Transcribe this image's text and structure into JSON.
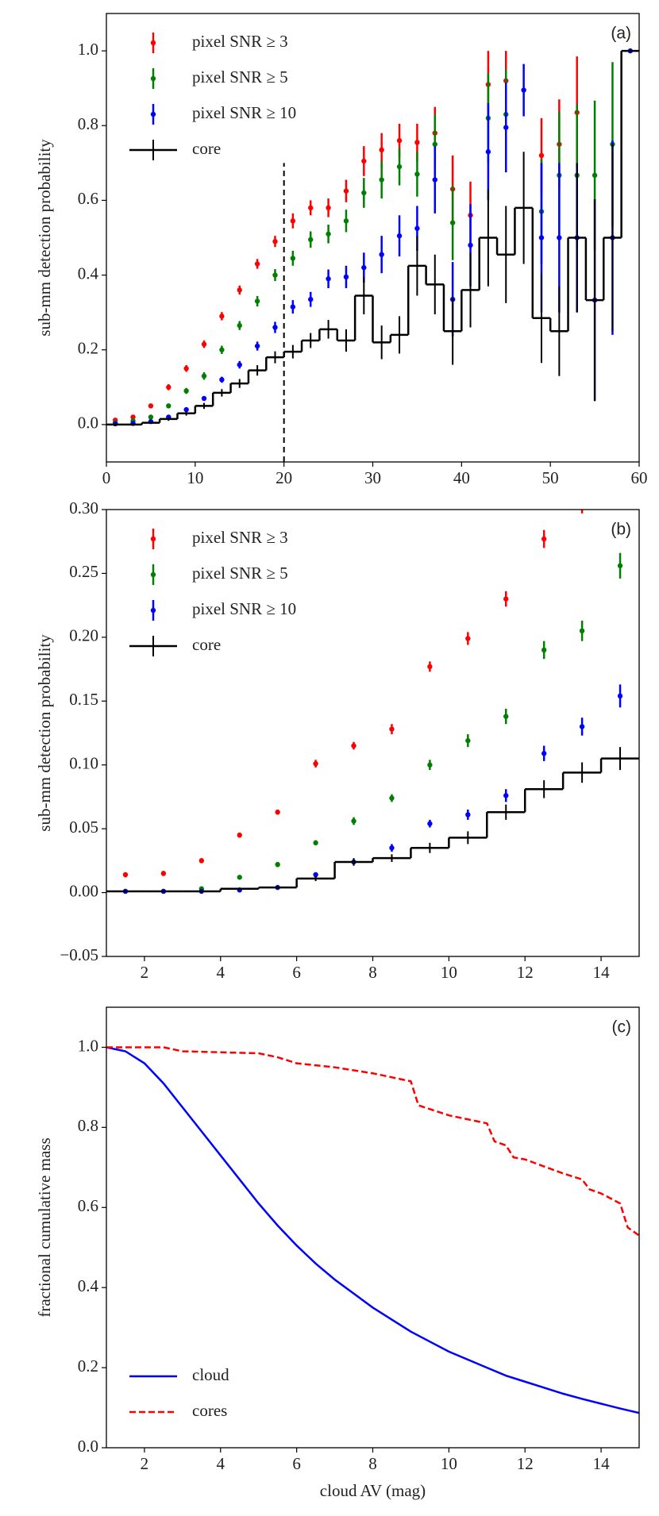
{
  "chart_data": [
    {
      "type": "errorbar",
      "ylabel": "sub-mm detection probability",
      "annotation": "(a)",
      "legend": "upper left",
      "xlim": [
        0,
        60
      ],
      "xticks": [
        0,
        10,
        20,
        30,
        40,
        50,
        60
      ],
      "ylim": [
        -0.1,
        1.1
      ],
      "yticks": [
        {
          "value": 0,
          "label": "0.0"
        },
        0.2,
        0.4,
        0.6,
        0.8,
        {
          "value": 1,
          "label": "1.0"
        }
      ],
      "vline": {
        "x": 20,
        "ymax": 0.7
      },
      "x": [
        1,
        3,
        5,
        7,
        9,
        11,
        13,
        15,
        17,
        19,
        21,
        23,
        25,
        27,
        29,
        31,
        33,
        35,
        37,
        39,
        41,
        43,
        45,
        47,
        49,
        51,
        53,
        55,
        57,
        59
      ],
      "bins": [
        0,
        2,
        4,
        6,
        8,
        10,
        12,
        14,
        16,
        18,
        20,
        22,
        24,
        26,
        28,
        30,
        32,
        34,
        36,
        38,
        40,
        42,
        44,
        46,
        48,
        50,
        52,
        54,
        56,
        58,
        60
      ],
      "series": [
        {
          "name": "pixel SNR ≥ 3",
          "style": "points",
          "color": "#ff0000",
          "values": [
            0.012,
            0.02,
            0.05,
            0.1,
            0.15,
            0.215,
            0.29,
            0.36,
            0.43,
            0.49,
            0.545,
            0.58,
            0.58,
            0.625,
            0.705,
            0.735,
            0.76,
            0.755,
            0.78,
            0.63,
            0.56,
            0.91,
            0.92,
            null,
            0.72,
            0.75,
            0.835,
            null,
            null,
            null
          ],
          "errors": [
            0.004,
            0.005,
            0.006,
            0.008,
            0.009,
            0.01,
            0.011,
            0.012,
            0.013,
            0.015,
            0.02,
            0.02,
            0.025,
            0.03,
            0.04,
            0.045,
            0.045,
            0.05,
            0.07,
            0.09,
            0.09,
            0.09,
            0.08,
            null,
            0.1,
            0.12,
            0.15,
            null,
            null,
            null
          ]
        },
        {
          "name": "pixel SNR ≥ 5",
          "style": "points",
          "color": "#008000",
          "values": [
            0.005,
            0.01,
            0.02,
            0.05,
            0.09,
            0.13,
            0.2,
            0.265,
            0.33,
            0.4,
            0.445,
            0.495,
            0.51,
            0.545,
            0.62,
            0.655,
            0.69,
            0.67,
            0.75,
            0.54,
            null,
            0.82,
            0.83,
            null,
            0.57,
            0.667,
            0.667,
            0.667,
            0.75,
            null
          ],
          "errors": [
            0.003,
            0.004,
            0.005,
            0.006,
            0.008,
            0.01,
            0.011,
            0.012,
            0.014,
            0.016,
            0.02,
            0.022,
            0.025,
            0.03,
            0.04,
            0.05,
            0.05,
            0.06,
            0.08,
            0.1,
            null,
            0.12,
            0.12,
            null,
            0.14,
            0.17,
            0.19,
            0.2,
            0.22,
            null
          ]
        },
        {
          "name": "pixel SNR ≥ 10",
          "style": "points",
          "color": "#0000ff",
          "values": [
            0.002,
            0.003,
            0.008,
            0.02,
            0.04,
            0.07,
            0.12,
            0.16,
            0.21,
            0.26,
            0.315,
            0.335,
            0.39,
            0.395,
            0.42,
            0.455,
            0.505,
            0.525,
            0.655,
            0.335,
            0.48,
            0.73,
            0.795,
            0.895,
            0.5,
            0.5,
            0.5,
            0.333,
            0.5,
            1.0
          ],
          "errors": [
            0.002,
            0.002,
            0.003,
            0.004,
            0.005,
            0.006,
            0.008,
            0.01,
            0.012,
            0.015,
            0.018,
            0.02,
            0.025,
            0.03,
            0.04,
            0.05,
            0.055,
            0.06,
            0.09,
            0.1,
            0.11,
            0.13,
            0.12,
            0.07,
            0.2,
            0.2,
            0.2,
            0.27,
            0.26,
            0
          ]
        },
        {
          "name": "core",
          "style": "step",
          "color": "#000000",
          "values": [
            0,
            0,
            0.005,
            0.015,
            0.03,
            0.05,
            0.085,
            0.11,
            0.145,
            0.18,
            0.195,
            0.225,
            0.255,
            0.225,
            0.345,
            0.22,
            0.24,
            0.425,
            0.375,
            0.25,
            0.36,
            0.5,
            0.455,
            0.58,
            0.285,
            0.25,
            0.5,
            0.333,
            0.5,
            1.0
          ],
          "errors": [
            0.002,
            0.002,
            0.003,
            0.005,
            0.006,
            0.008,
            0.01,
            0.012,
            0.014,
            0.016,
            0.018,
            0.02,
            0.025,
            0.03,
            0.05,
            0.045,
            0.05,
            0.08,
            0.08,
            0.09,
            0.1,
            0.13,
            0.13,
            0.15,
            0.12,
            0.12,
            0.2,
            0.27,
            0.25,
            0
          ]
        }
      ]
    },
    {
      "type": "errorbar",
      "ylabel": "sub-mm detection probability",
      "annotation": "(b)",
      "legend": "upper left",
      "xlim": [
        1,
        15
      ],
      "xticks": [
        2,
        4,
        6,
        8,
        10,
        12,
        14
      ],
      "ylim": [
        -0.05,
        0.3
      ],
      "yticks": [
        {
          "value": -0.05,
          "label": "−0.05"
        },
        {
          "value": 0,
          "label": "0.00"
        },
        0.05,
        {
          "value": 0.1,
          "label": "0.10"
        },
        0.15,
        {
          "value": 0.2,
          "label": "0.20"
        },
        0.25,
        {
          "value": 0.3,
          "label": "0.30"
        }
      ],
      "x": [
        1.5,
        2.5,
        3.5,
        4.5,
        5.5,
        6.5,
        7.5,
        8.5,
        9.5,
        10.5,
        11.5,
        12.5,
        13.5,
        14.5
      ],
      "bins": [
        1,
        2,
        3,
        4,
        5,
        6,
        7,
        8,
        9,
        10,
        11,
        12,
        13,
        14,
        15
      ],
      "series": [
        {
          "name": "pixel SNR ≥ 3",
          "style": "points",
          "color": "#ff0000",
          "values": [
            0.014,
            0.015,
            0.025,
            0.045,
            0.063,
            0.101,
            0.115,
            0.128,
            0.177,
            0.199,
            0.23,
            0.277,
            0.305,
            null
          ],
          "errors": [
            0.002,
            0.002,
            0.002,
            0.002,
            0.002,
            0.003,
            0.003,
            0.004,
            0.004,
            0.005,
            0.006,
            0.007,
            0.008,
            null
          ]
        },
        {
          "name": "pixel SNR ≥ 5",
          "style": "points",
          "color": "#008000",
          "values": [
            0.001,
            0.001,
            0.003,
            0.012,
            0.022,
            0.039,
            0.056,
            0.074,
            0.1,
            0.119,
            0.138,
            0.19,
            0.205,
            0.256
          ],
          "errors": [
            0.001,
            0.001,
            0.001,
            0.001,
            0.002,
            0.002,
            0.003,
            0.003,
            0.004,
            0.005,
            0.006,
            0.007,
            0.008,
            0.01
          ]
        },
        {
          "name": "pixel SNR ≥ 10",
          "style": "points",
          "color": "#0000ff",
          "values": [
            0.001,
            0.001,
            0.001,
            0.002,
            0.004,
            0.014,
            0.024,
            0.035,
            0.054,
            0.061,
            0.076,
            0.109,
            0.13,
            0.154
          ],
          "errors": [
            0.001,
            0.001,
            0.001,
            0.001,
            0.001,
            0.002,
            0.002,
            0.003,
            0.003,
            0.004,
            0.005,
            0.006,
            0.007,
            0.009
          ]
        },
        {
          "name": "core",
          "style": "step",
          "color": "#000000",
          "values": [
            0.001,
            0.001,
            0.001,
            0.003,
            0.004,
            0.011,
            0.024,
            0.027,
            0.035,
            0.043,
            0.063,
            0.081,
            0.094,
            0.105
          ],
          "errors": [
            0.001,
            0.001,
            0.001,
            0.001,
            0.001,
            0.002,
            0.003,
            0.003,
            0.004,
            0.005,
            0.006,
            0.007,
            0.008,
            0.009
          ]
        }
      ]
    },
    {
      "type": "line",
      "ylabel": "fractional cumulative mass",
      "xlabel": "cloud AV (mag)",
      "annotation": "(c)",
      "legend": "lower left",
      "xlim": [
        1,
        15
      ],
      "xticks": [
        2,
        4,
        6,
        8,
        10,
        12,
        14
      ],
      "ylim": [
        0,
        1.1
      ],
      "yticks": [
        {
          "value": 0,
          "label": "0.0"
        },
        0.2,
        0.4,
        0.6,
        0.8,
        {
          "value": 1,
          "label": "1.0"
        }
      ],
      "series": [
        {
          "name": "cloud",
          "style": "solid",
          "color": "#0000ff",
          "x": [
            1,
            1.5,
            2,
            2.5,
            3,
            3.5,
            4,
            4.5,
            5,
            5.5,
            6,
            6.5,
            7,
            7.5,
            8,
            8.5,
            9,
            9.5,
            10,
            10.5,
            11,
            11.5,
            12,
            12.5,
            13,
            13.5,
            14,
            14.5,
            15
          ],
          "values": [
            1.0,
            0.99,
            0.96,
            0.91,
            0.85,
            0.79,
            0.73,
            0.67,
            0.61,
            0.555,
            0.505,
            0.46,
            0.42,
            0.385,
            0.35,
            0.32,
            0.29,
            0.265,
            0.24,
            0.22,
            0.2,
            0.18,
            0.165,
            0.15,
            0.135,
            0.122,
            0.11,
            0.098,
            0.087
          ]
        },
        {
          "name": "cores",
          "style": "dashed",
          "color": "#ff0000",
          "x": [
            1,
            2.5,
            3,
            5,
            5.5,
            6,
            7,
            8,
            9,
            9.2,
            10,
            11,
            11.2,
            11.5,
            11.7,
            12,
            13,
            13.5,
            13.7,
            14,
            14.5,
            14.7,
            15
          ],
          "values": [
            1.0,
            1.0,
            0.99,
            0.985,
            0.975,
            0.96,
            0.95,
            0.935,
            0.915,
            0.855,
            0.83,
            0.81,
            0.765,
            0.755,
            0.725,
            0.72,
            0.685,
            0.67,
            0.645,
            0.635,
            0.61,
            0.55,
            0.53
          ]
        }
      ]
    }
  ]
}
